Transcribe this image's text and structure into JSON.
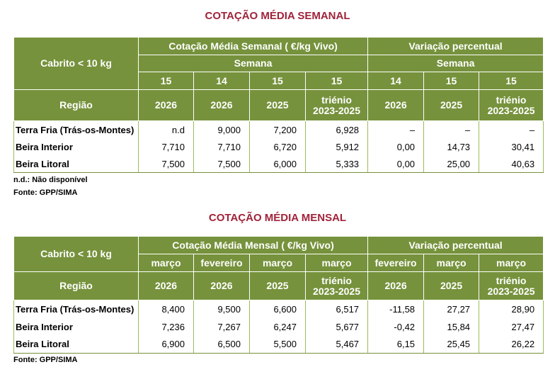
{
  "weekly": {
    "title": "COTAÇÃO MÉDIA SEMANAL",
    "corner_top": "Cabrito < 10 kg",
    "corner_bottom": "Região",
    "group1": "Cotação Média Semanal ( €/kg Vivo)",
    "group2": "Variação percentual",
    "sub1": "Semana",
    "sub2": "Semana",
    "periods": [
      "15",
      "14",
      "15",
      "15",
      "14",
      "15",
      "15"
    ],
    "years": [
      "2026",
      "2026",
      "2025",
      "triénio 2023-2025",
      "2026",
      "2025",
      "triénio 2023-2025"
    ],
    "rows": [
      {
        "region": "Terra Fria (Trás-os-Montes)",
        "values": [
          "n.d",
          "9,000",
          "7,200",
          "6,928",
          "–",
          "–",
          "–"
        ]
      },
      {
        "region": "Beira Interior",
        "values": [
          "7,710",
          "7,710",
          "6,720",
          "5,912",
          "0,00",
          "14,73",
          "30,41"
        ]
      },
      {
        "region": "Beira Litoral",
        "values": [
          "7,500",
          "7,500",
          "6,000",
          "5,333",
          "0,00",
          "25,00",
          "40,63"
        ]
      }
    ],
    "note1": "n.d.: Não disponível",
    "note2": "Fonte: GPP/SIMA"
  },
  "monthly": {
    "title": "COTAÇÃO MÉDIA MENSAL",
    "corner_top": "Cabrito < 10 kg",
    "corner_bottom": "Região",
    "group1": "Cotação Média Mensal ( €/kg Vivo)",
    "group2": "Variação percentual",
    "periods": [
      "março",
      "fevereiro",
      "março",
      "março",
      "fevereiro",
      "março",
      "março"
    ],
    "years": [
      "2026",
      "2026",
      "2025",
      "triénio 2023-2025",
      "2026",
      "2025",
      "triénio 2023-2025"
    ],
    "rows": [
      {
        "region": "Terra Fria (Trás-os-Montes)",
        "values": [
          "8,400",
          "9,500",
          "6,600",
          "6,517",
          "-11,58",
          "27,27",
          "28,90"
        ]
      },
      {
        "region": "Beira Interior",
        "values": [
          "7,236",
          "7,267",
          "6,247",
          "5,677",
          "-0,42",
          "15,84",
          "27,47"
        ]
      },
      {
        "region": "Beira Litoral",
        "values": [
          "6,900",
          "6,500",
          "5,500",
          "5,467",
          "6,15",
          "25,45",
          "26,22"
        ]
      }
    ],
    "note1": "Fonte: GPP/SIMA"
  }
}
